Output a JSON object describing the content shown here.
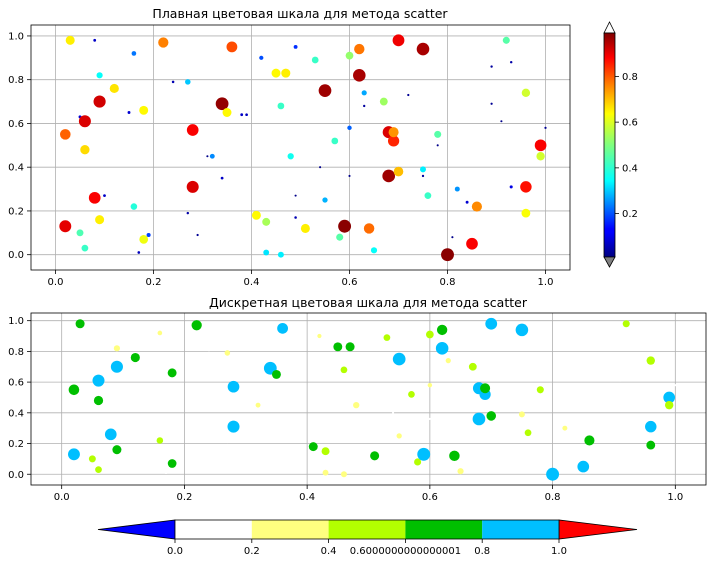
{
  "chart_data": [
    {
      "type": "scatter",
      "title": "Плавная цветовая шкала для метода scatter",
      "xlim": [
        -0.05,
        1.05
      ],
      "ylim": [
        -0.07,
        1.05
      ],
      "xticks": [
        "0.0",
        "0.2",
        "0.4",
        "0.6",
        "0.8",
        "1.0"
      ],
      "yticks": [
        "0.0",
        "0.2",
        "0.4",
        "0.6",
        "0.8",
        "1.0"
      ],
      "grid": true,
      "colormap": "jet",
      "colorbar": {
        "orientation": "vertical",
        "placement": "right",
        "range": [
          0.01,
          0.99
        ],
        "extend": "both",
        "under_color": "#808080",
        "over_color": "#ffffff",
        "ticks": [
          "0.2",
          "0.4",
          "0.6",
          "0.8"
        ]
      },
      "points": [
        [
          0.03,
          0.98,
          0.64
        ],
        [
          0.08,
          0.98,
          0.07
        ],
        [
          0.16,
          0.92,
          0.24
        ],
        [
          0.22,
          0.97,
          0.75
        ],
        [
          0.36,
          0.95,
          0.8
        ],
        [
          0.42,
          0.9,
          0.2
        ],
        [
          0.49,
          0.95,
          0.17
        ],
        [
          0.53,
          0.89,
          0.43
        ],
        [
          0.6,
          0.91,
          0.52
        ],
        [
          0.62,
          0.94,
          0.76
        ],
        [
          0.7,
          0.98,
          0.89
        ],
        [
          0.75,
          0.94,
          0.96
        ],
        [
          0.92,
          0.98,
          0.46
        ],
        [
          0.89,
          0.86,
          0.03
        ],
        [
          0.93,
          0.88,
          0.04
        ],
        [
          0.09,
          0.82,
          0.38
        ],
        [
          0.12,
          0.76,
          0.65
        ],
        [
          0.24,
          0.79,
          0.05
        ],
        [
          0.27,
          0.79,
          0.32
        ],
        [
          0.45,
          0.83,
          0.63
        ],
        [
          0.47,
          0.83,
          0.64
        ],
        [
          0.62,
          0.82,
          0.96
        ],
        [
          0.05,
          0.63,
          0.08
        ],
        [
          0.06,
          0.61,
          0.91
        ],
        [
          0.09,
          0.7,
          0.92
        ],
        [
          0.15,
          0.65,
          0.08
        ],
        [
          0.18,
          0.66,
          0.63
        ],
        [
          0.28,
          0.57,
          0.88
        ],
        [
          0.34,
          0.69,
          0.98
        ],
        [
          0.38,
          0.64,
          0.07
        ],
        [
          0.39,
          0.64,
          0.06
        ],
        [
          0.35,
          0.65,
          0.63
        ],
        [
          0.46,
          0.68,
          0.43
        ],
        [
          0.55,
          0.75,
          0.97
        ],
        [
          0.63,
          0.74,
          0.29
        ],
        [
          0.63,
          0.68,
          0.03
        ],
        [
          0.67,
          0.7,
          0.53
        ],
        [
          0.72,
          0.73,
          0.02
        ],
        [
          0.89,
          0.69,
          0.02
        ],
        [
          0.91,
          0.61,
          0.01
        ],
        [
          0.96,
          0.74,
          0.58
        ],
        [
          0.02,
          0.55,
          0.78
        ],
        [
          0.06,
          0.48,
          0.66
        ],
        [
          0.31,
          0.45,
          0.01
        ],
        [
          0.32,
          0.45,
          0.26
        ],
        [
          0.48,
          0.45,
          0.39
        ],
        [
          0.57,
          0.52,
          0.43
        ],
        [
          0.6,
          0.58,
          0.22
        ],
        [
          0.68,
          0.56,
          0.91
        ],
        [
          0.69,
          0.52,
          0.84
        ],
        [
          0.69,
          0.56,
          0.73
        ],
        [
          0.78,
          0.55,
          0.46
        ],
        [
          0.78,
          0.5,
          0.01
        ],
        [
          0.99,
          0.5,
          0.88
        ],
        [
          0.99,
          0.45,
          0.58
        ],
        [
          1.0,
          0.58,
          0.02
        ],
        [
          0.34,
          0.35,
          0.07
        ],
        [
          0.54,
          0.4,
          0.01
        ],
        [
          0.6,
          0.36,
          0.01
        ],
        [
          0.68,
          0.36,
          0.97
        ],
        [
          0.7,
          0.38,
          0.69
        ],
        [
          0.75,
          0.39,
          0.36
        ],
        [
          0.75,
          0.36,
          0.03
        ],
        [
          0.08,
          0.26,
          0.88
        ],
        [
          0.1,
          0.27,
          0.07
        ],
        [
          0.28,
          0.31,
          0.91
        ],
        [
          0.49,
          0.27,
          0.01
        ],
        [
          0.55,
          0.25,
          0.3
        ],
        [
          0.76,
          0.27,
          0.43
        ],
        [
          0.82,
          0.3,
          0.27
        ],
        [
          0.84,
          0.24,
          0.08
        ],
        [
          0.86,
          0.22,
          0.74
        ],
        [
          0.93,
          0.31,
          0.1
        ],
        [
          0.96,
          0.31,
          0.86
        ],
        [
          0.02,
          0.13,
          0.9
        ],
        [
          0.05,
          0.1,
          0.45
        ],
        [
          0.06,
          0.03,
          0.43
        ],
        [
          0.09,
          0.16,
          0.64
        ],
        [
          0.16,
          0.22,
          0.41
        ],
        [
          0.18,
          0.07,
          0.61
        ],
        [
          0.19,
          0.09,
          0.19
        ],
        [
          0.17,
          0.01,
          0.06
        ],
        [
          0.27,
          0.19,
          0.04
        ],
        [
          0.29,
          0.09,
          0.02
        ],
        [
          0.41,
          0.18,
          0.63
        ],
        [
          0.43,
          0.15,
          0.54
        ],
        [
          0.43,
          0.01,
          0.35
        ],
        [
          0.46,
          0.0,
          0.36
        ],
        [
          0.49,
          0.17,
          0.05
        ],
        [
          0.51,
          0.12,
          0.64
        ],
        [
          0.58,
          0.08,
          0.46
        ],
        [
          0.59,
          0.13,
          0.99
        ],
        [
          0.64,
          0.12,
          0.77
        ],
        [
          0.65,
          0.02,
          0.38
        ],
        [
          0.8,
          0.0,
          0.99
        ],
        [
          0.81,
          0.08,
          0.01
        ],
        [
          0.85,
          0.05,
          0.88
        ],
        [
          0.96,
          0.19,
          0.62
        ]
      ]
    },
    {
      "type": "scatter",
      "title": "Дискретная цветовая шкала для метода scatter",
      "xlim": [
        -0.05,
        1.05
      ],
      "ylim": [
        -0.07,
        1.05
      ],
      "xticks": [
        "0.0",
        "0.2",
        "0.4",
        "0.6",
        "0.8",
        "1.0"
      ],
      "yticks": [
        "0.0",
        "0.2",
        "0.4",
        "0.6",
        "0.8",
        "1.0"
      ],
      "grid": true,
      "colorbar": {
        "orientation": "horizontal",
        "placement": "bottom",
        "extend": "both",
        "under_color": "#0000ff",
        "over_color": "#ff0000",
        "boundaries": [
          0.0,
          0.2,
          0.4,
          0.6000000000000001,
          0.8,
          1.0
        ],
        "tick_labels": [
          "0.0",
          "0.2",
          "0.4",
          "0.6000000000000001",
          "0.8",
          "1.0"
        ],
        "colors": [
          "#ffffff",
          "#ffff80",
          "#b3ff00",
          "#00bf00",
          "#00bfff"
        ]
      },
      "points": []
    }
  ]
}
